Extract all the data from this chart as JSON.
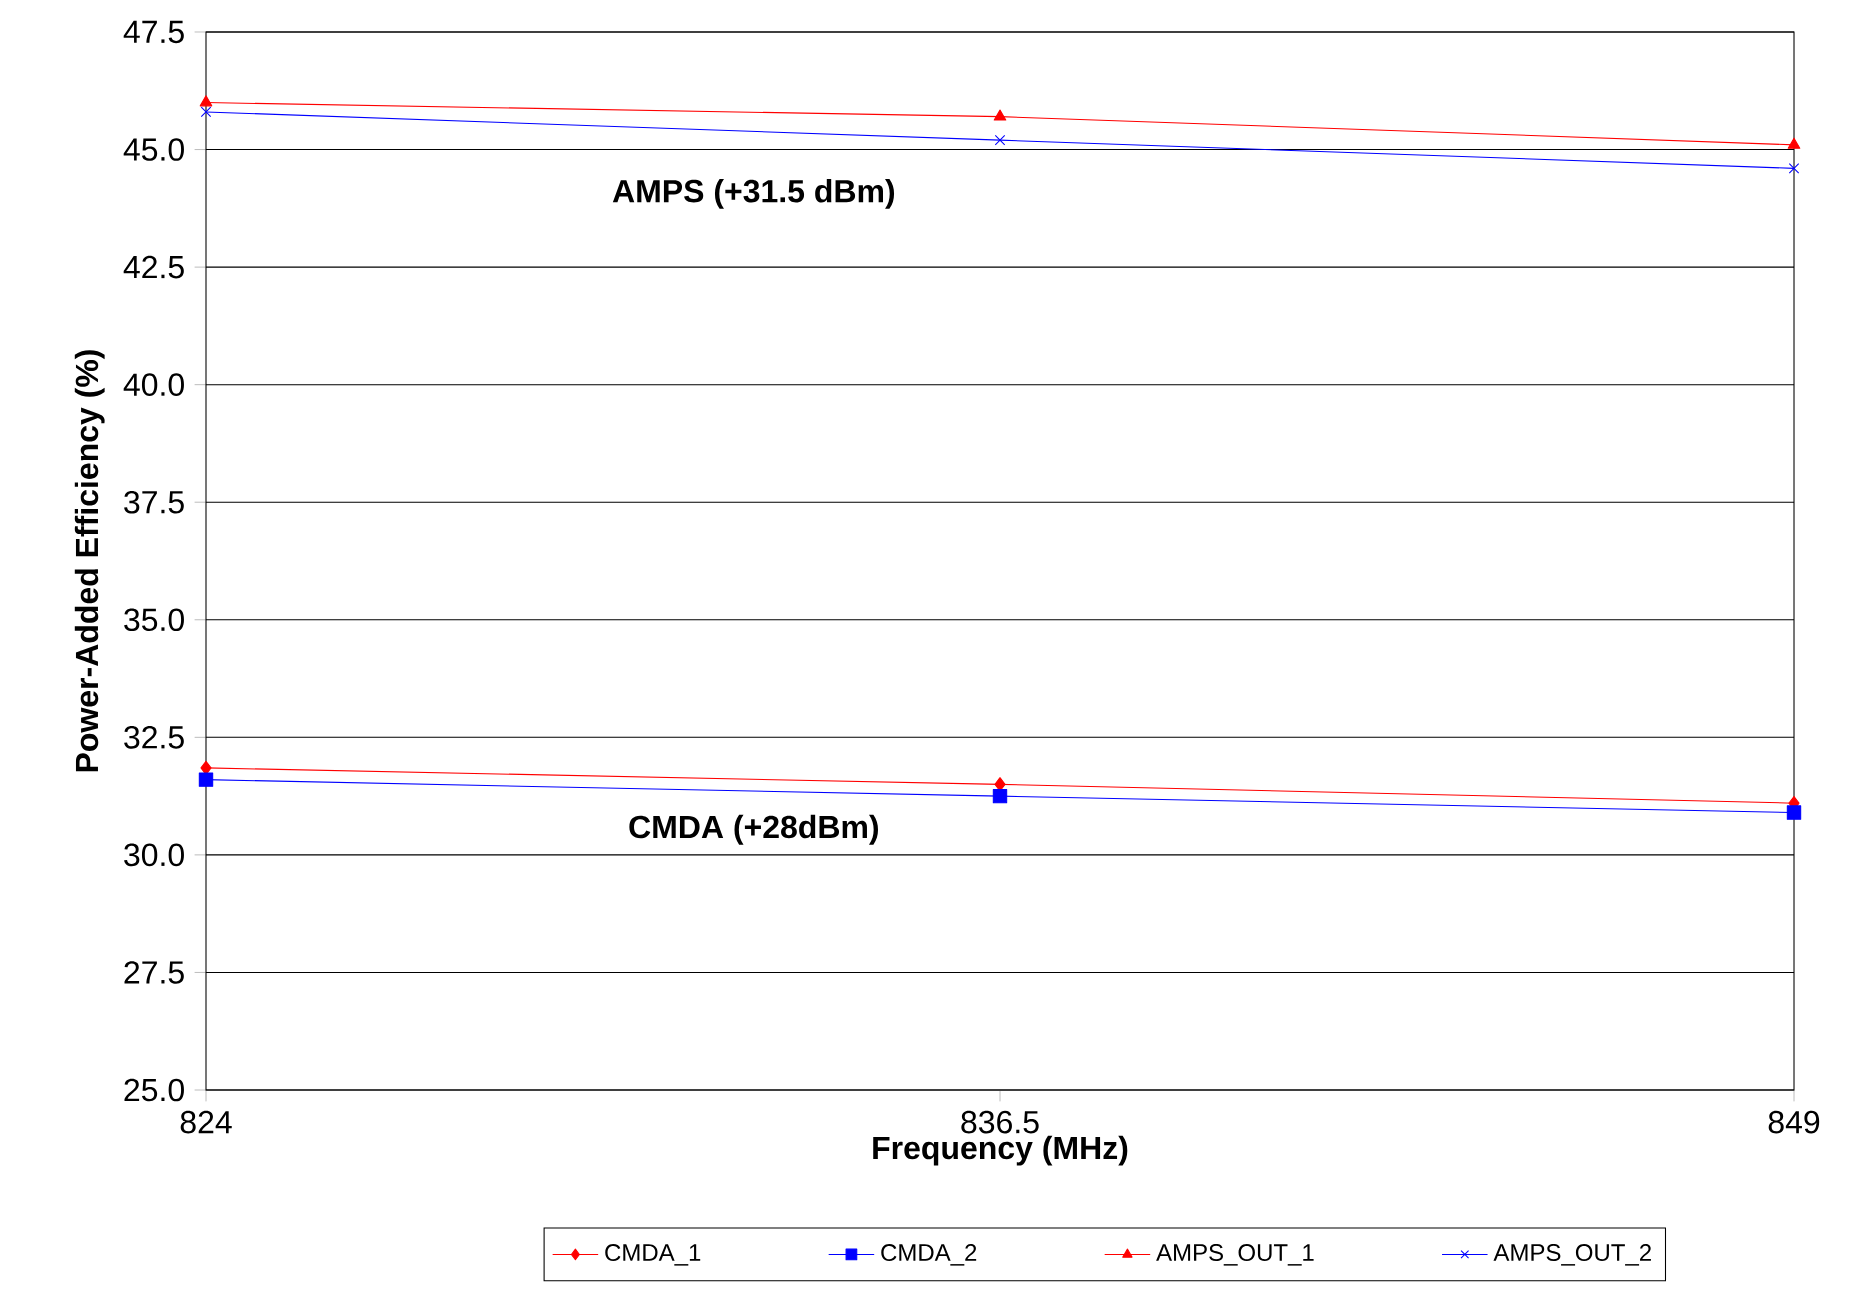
{
  "chart_data": {
    "type": "line",
    "xlabel": "Frequency (MHz)",
    "ylabel": "Power-Added Efficiency (%)",
    "x": [
      824,
      836.5,
      849
    ],
    "series": [
      {
        "name": "CMDA_1",
        "color": "#ff0000",
        "marker": "diamond",
        "values": [
          31.85,
          31.5,
          31.1
        ]
      },
      {
        "name": "CMDA_2",
        "color": "#0000ff",
        "marker": "square",
        "values": [
          31.6,
          31.25,
          30.9
        ]
      },
      {
        "name": "AMPS_OUT_1",
        "color": "#ff0000",
        "marker": "triangle",
        "values": [
          46.0,
          45.7,
          45.1
        ]
      },
      {
        "name": "AMPS_OUT_2",
        "color": "#0000ff",
        "marker": "cross",
        "values": [
          45.8,
          45.2,
          44.6
        ]
      }
    ],
    "xlim": [
      824,
      849
    ],
    "xticks": [
      824,
      836.5,
      849
    ],
    "ylim": [
      25,
      47.5
    ],
    "yticks": [
      {
        "value": 25,
        "label": "25.0"
      },
      {
        "value": 27.5,
        "label": "27.5"
      },
      {
        "value": 30,
        "label": "30.0"
      },
      {
        "value": 32.5,
        "label": "32.5"
      },
      {
        "value": 35,
        "label": "35.0"
      },
      {
        "value": 37.5,
        "label": "37.5"
      },
      {
        "value": 40,
        "label": "40.0"
      },
      {
        "value": 42.5,
        "label": "42.5"
      },
      {
        "value": 45,
        "label": "45.0"
      },
      {
        "value": 47.5,
        "label": "47.5"
      }
    ],
    "grid": "y",
    "legend": "bottom",
    "annotations": [
      "AMPS (+31.5 dBm)",
      "CMDA (+28dBm)"
    ]
  }
}
